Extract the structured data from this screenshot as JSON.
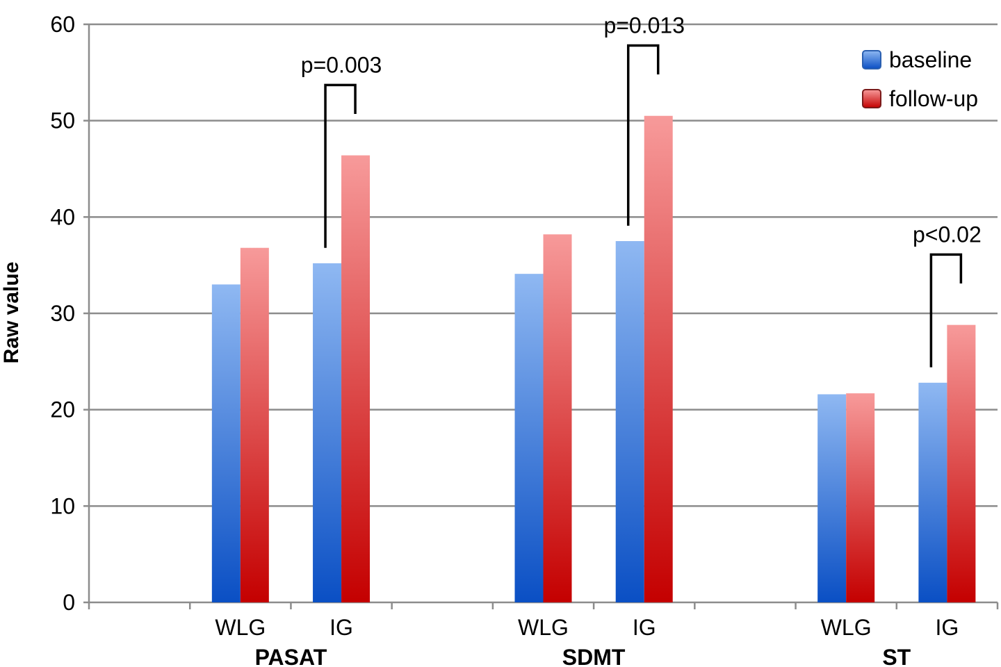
{
  "chart_data": {
    "type": "bar",
    "ylabel": "Raw value",
    "ylim": [
      0,
      60
    ],
    "yticks": [
      0,
      10,
      20,
      30,
      40,
      50,
      60
    ],
    "grid": true,
    "legend_position": "top-right",
    "groups": [
      {
        "label": "PASAT",
        "categories": [
          "WLG",
          "IG"
        ]
      },
      {
        "label": "SDMT",
        "categories": [
          "WLG",
          "IG"
        ]
      },
      {
        "label": "ST",
        "categories": [
          "WLG",
          "IG"
        ]
      }
    ],
    "categories": [
      "WLG",
      "IG",
      "WLG",
      "IG",
      "WLG",
      "IG"
    ],
    "series": [
      {
        "name": "baseline",
        "color": "#3a78d8",
        "values": [
          33.0,
          35.2,
          34.1,
          37.5,
          21.6,
          22.8
        ]
      },
      {
        "name": "follow-up",
        "color": "#e03a3a",
        "values": [
          36.8,
          46.4,
          38.2,
          50.5,
          21.7,
          28.8
        ]
      }
    ],
    "annotations": [
      {
        "text": "p=0.003",
        "group": "PASAT",
        "category": "IG"
      },
      {
        "text": "p=0.013",
        "group": "SDMT",
        "category": "IG"
      },
      {
        "text": "p<0.02",
        "group": "ST",
        "category": "IG"
      }
    ]
  }
}
